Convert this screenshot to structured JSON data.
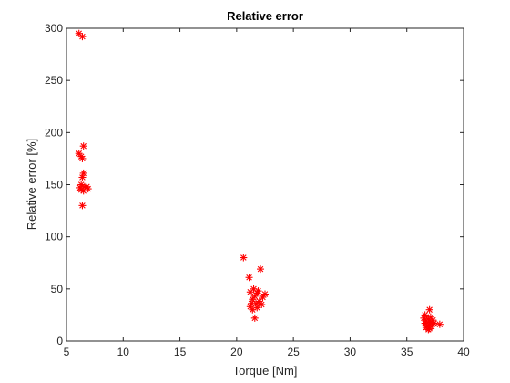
{
  "chart_data": {
    "type": "scatter",
    "title": "Relative error",
    "xlabel": "Torque [Nm]",
    "ylabel": "Relative error [%]",
    "xlim": [
      5,
      40
    ],
    "ylim": [
      0,
      300
    ],
    "xticks": [
      5,
      10,
      15,
      20,
      25,
      30,
      35,
      40
    ],
    "yticks": [
      0,
      50,
      100,
      150,
      200,
      250,
      300
    ],
    "grid": false,
    "legend": "none",
    "marker": "asterisk",
    "marker_color": "#ff0000",
    "series": [
      {
        "points": [
          [
            6.1,
            295
          ],
          [
            6.4,
            292
          ],
          [
            6.5,
            187
          ],
          [
            6.1,
            180
          ],
          [
            6.3,
            177
          ],
          [
            6.4,
            175
          ],
          [
            6.5,
            161
          ],
          [
            6.4,
            157
          ],
          [
            6.3,
            150
          ],
          [
            6.2,
            147
          ],
          [
            6.6,
            148
          ],
          [
            6.8,
            148
          ],
          [
            6.3,
            145
          ],
          [
            6.5,
            144
          ],
          [
            6.9,
            146
          ],
          [
            6.4,
            130
          ],
          [
            20.6,
            80
          ],
          [
            22.1,
            69
          ],
          [
            21.1,
            61
          ],
          [
            21.5,
            50
          ],
          [
            21.9,
            48
          ],
          [
            21.2,
            47
          ],
          [
            21.8,
            46
          ],
          [
            22.5,
            45
          ],
          [
            21.6,
            43
          ],
          [
            22.3,
            42
          ],
          [
            21.4,
            40
          ],
          [
            22.0,
            38
          ],
          [
            21.3,
            36
          ],
          [
            21.7,
            36
          ],
          [
            22.2,
            35
          ],
          [
            21.2,
            33
          ],
          [
            21.8,
            32
          ],
          [
            21.4,
            30
          ],
          [
            21.6,
            22
          ],
          [
            37.0,
            30
          ],
          [
            36.6,
            25
          ],
          [
            37.1,
            23
          ],
          [
            36.5,
            22
          ],
          [
            36.9,
            21
          ],
          [
            37.3,
            20
          ],
          [
            36.7,
            19
          ],
          [
            37.1,
            18
          ],
          [
            36.6,
            17
          ],
          [
            37.4,
            17
          ],
          [
            37.9,
            16
          ],
          [
            37.0,
            16
          ],
          [
            36.8,
            15
          ],
          [
            37.2,
            14
          ],
          [
            36.7,
            13
          ],
          [
            37.0,
            12
          ],
          [
            36.9,
            11
          ]
        ]
      }
    ]
  }
}
